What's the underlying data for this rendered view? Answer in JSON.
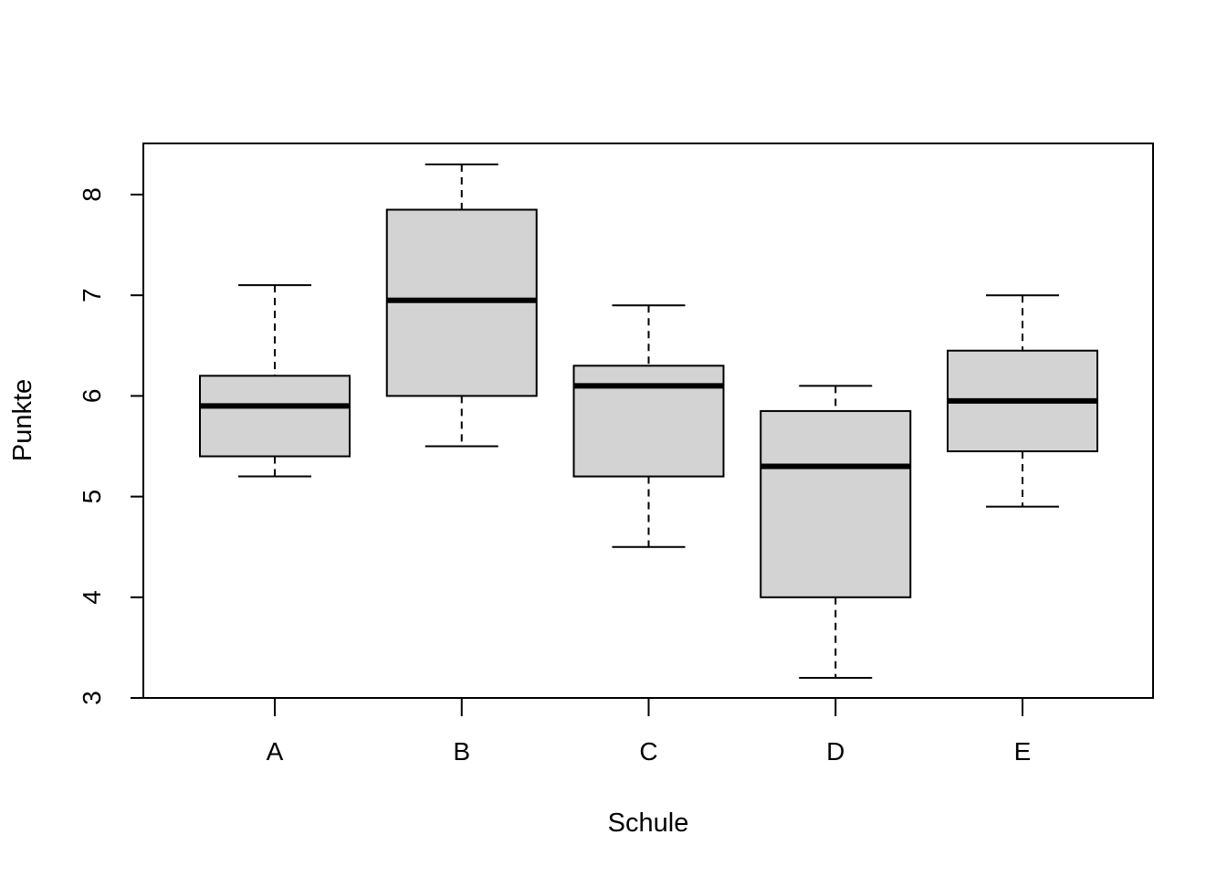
{
  "chart_data": {
    "type": "boxplot",
    "title": "",
    "xlabel": "Schule",
    "ylabel": "Punkte",
    "ylim": [
      3,
      8.5
    ],
    "yticks": [
      3,
      4,
      5,
      6,
      7,
      8
    ],
    "categories": [
      "A",
      "B",
      "C",
      "D",
      "E"
    ],
    "boxes": [
      {
        "category": "A",
        "min": 5.2,
        "q1": 5.4,
        "median": 5.9,
        "q3": 6.2,
        "max": 7.1
      },
      {
        "category": "B",
        "min": 5.5,
        "q1": 6.0,
        "median": 6.95,
        "q3": 7.85,
        "max": 8.3
      },
      {
        "category": "C",
        "min": 4.5,
        "q1": 5.2,
        "median": 6.1,
        "q3": 6.3,
        "max": 6.9
      },
      {
        "category": "D",
        "min": 3.2,
        "q1": 4.0,
        "median": 5.3,
        "q3": 5.85,
        "max": 6.1
      },
      {
        "category": "E",
        "min": 4.9,
        "q1": 5.45,
        "median": 5.95,
        "q3": 6.45,
        "max": 7.0
      }
    ],
    "colors": {
      "box_fill": "#d3d3d3",
      "stroke": "#000000",
      "background": "#ffffff"
    },
    "grid": false,
    "legend": "none"
  }
}
